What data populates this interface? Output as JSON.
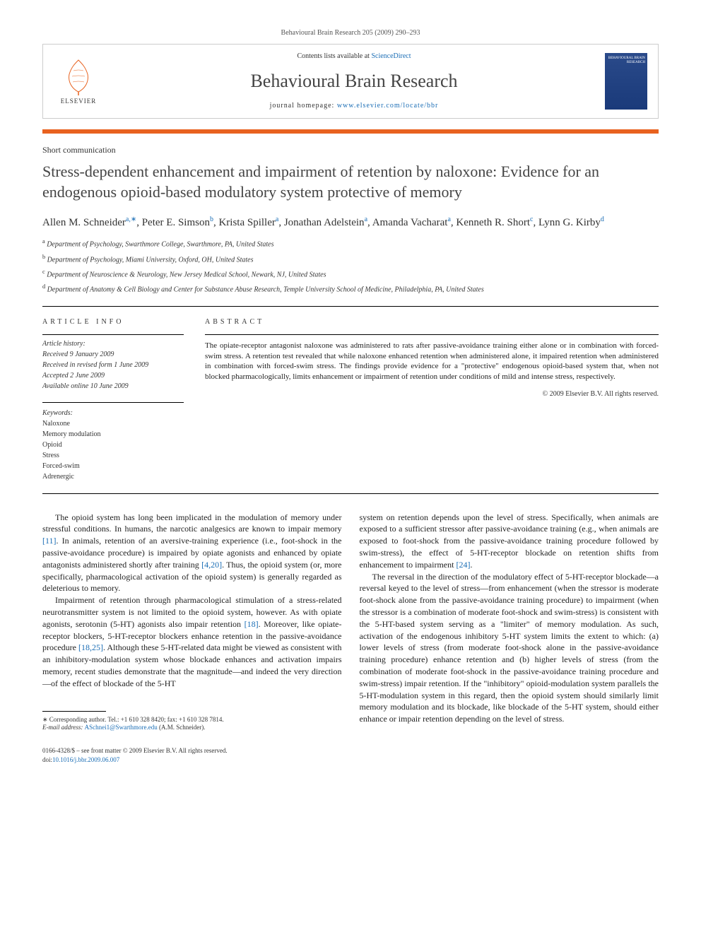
{
  "header": {
    "citation": "Behavioural Brain Research 205 (2009) 290–293"
  },
  "topbox": {
    "contents_prefix": "Contents lists available at ",
    "contents_link": "ScienceDirect",
    "journal_name": "Behavioural Brain Research",
    "homepage_prefix": "journal homepage: ",
    "homepage_url": "www.elsevier.com/locate/bbr",
    "elsevier_label": "ELSEVIER",
    "cover_text": "BEHAVIOURAL BRAIN RESEARCH"
  },
  "article": {
    "type": "Short communication",
    "title": "Stress-dependent enhancement and impairment of retention by naloxone: Evidence for an endogenous opioid-based modulatory system protective of memory",
    "authors_html": [
      {
        "name": "Allen M. Schneider",
        "sup": "a,∗"
      },
      {
        "name": "Peter E. Simson",
        "sup": "b"
      },
      {
        "name": "Krista Spiller",
        "sup": "a"
      },
      {
        "name": "Jonathan Adelstein",
        "sup": "a"
      },
      {
        "name": "Amanda Vacharat",
        "sup": "a"
      },
      {
        "name": "Kenneth R. Short",
        "sup": "c"
      },
      {
        "name": "Lynn G. Kirby",
        "sup": "d"
      }
    ],
    "affiliations": [
      {
        "sup": "a",
        "text": "Department of Psychology, Swarthmore College, Swarthmore, PA, United States"
      },
      {
        "sup": "b",
        "text": "Department of Psychology, Miami University, Oxford, OH, United States"
      },
      {
        "sup": "c",
        "text": "Department of Neuroscience & Neurology, New Jersey Medical School, Newark, NJ, United States"
      },
      {
        "sup": "d",
        "text": "Department of Anatomy & Cell Biology and Center for Substance Abuse Research, Temple University School of Medicine, Philadelphia, PA, United States"
      }
    ]
  },
  "info": {
    "heading": "ARTICLE INFO",
    "history_label": "Article history:",
    "history": [
      "Received 9 January 2009",
      "Received in revised form 1 June 2009",
      "Accepted 2 June 2009",
      "Available online 10 June 2009"
    ],
    "keywords_label": "Keywords:",
    "keywords": [
      "Naloxone",
      "Memory modulation",
      "Opioid",
      "Stress",
      "Forced-swim",
      "Adrenergic"
    ]
  },
  "abstract": {
    "heading": "ABSTRACT",
    "text": "The opiate-receptor antagonist naloxone was administered to rats after passive-avoidance training either alone or in combination with forced-swim stress. A retention test revealed that while naloxone enhanced retention when administered alone, it impaired retention when administered in combination with forced-swim stress. The findings provide evidence for a \"protective\" endogenous opioid-based system that, when not blocked pharmacologically, limits enhancement or impairment of retention under conditions of mild and intense stress, respectively.",
    "copyright": "© 2009 Elsevier B.V. All rights reserved."
  },
  "body": {
    "col1": {
      "p1_pre": "The opioid system has long been implicated in the modulation of memory under stressful conditions. In humans, the narcotic analgesics are known to impair memory ",
      "p1_ref1": "[11]",
      "p1_mid": ". In animals, retention of an aversive-training experience (i.e., foot-shock in the passive-avoidance procedure) is impaired by opiate agonists and enhanced by opiate antagonists administered shortly after training ",
      "p1_ref2": "[4,20]",
      "p1_post": ". Thus, the opioid system (or, more specifically, pharmacological activation of the opioid system) is generally regarded as deleterious to memory.",
      "p2_pre": "Impairment of retention through pharmacological stimulation of a stress-related neurotransmitter system is not limited to the opioid system, however. As with opiate agonists, serotonin (5-HT) agonists also impair retention ",
      "p2_ref1": "[18]",
      "p2_mid": ". Moreover, like opiate-receptor blockers, 5-HT-receptor blockers enhance retention in the passive-avoidance procedure ",
      "p2_ref2": "[18,25]",
      "p2_post": ". Although these 5-HT-related data might be viewed as consistent with an inhibitory-modulation system whose blockade enhances and activation impairs memory, recent studies demonstrate that the magnitude—and indeed the very direction—of the effect of blockade of the 5-HT"
    },
    "col2": {
      "p1_pre": "system on retention depends upon the level of stress. Specifically, when animals are exposed to a sufficient stressor after passive-avoidance training (e.g., when animals are exposed to foot-shock from the passive-avoidance training procedure followed by swim-stress), the effect of 5-HT-receptor blockade on retention shifts from enhancement to impairment ",
      "p1_ref1": "[24]",
      "p1_post": ".",
      "p2": "The reversal in the direction of the modulatory effect of 5-HT-receptor blockade—a reversal keyed to the level of stress—from enhancement (when the stressor is moderate foot-shock alone from the passive-avoidance training procedure) to impairment (when the stressor is a combination of moderate foot-shock and swim-stress) is consistent with the 5-HT-based system serving as a \"limiter\" of memory modulation. As such, activation of the endogenous inhibitory 5-HT system limits the extent to which: (a) lower levels of stress (from moderate foot-shock alone in the passive-avoidance training procedure) enhance retention and (b) higher levels of stress (from the combination of moderate foot-shock in the passive-avoidance training procedure and swim-stress) impair retention. If the \"inhibitory\" opioid-modulation system parallels the 5-HT-modulation system in this regard, then the opioid system should similarly limit memory modulation and its blockade, like blockade of the 5-HT system, should either enhance or impair retention depending on the level of stress."
    }
  },
  "footnote": {
    "corresponding": "∗ Corresponding author. Tel.: +1 610 328 8420; fax: +1 610 328 7814.",
    "email_label": "E-mail address: ",
    "email": "ASchnei1@Swarthmore.edu",
    "email_suffix": " (A.M. Schneider)."
  },
  "footer": {
    "line1": "0166-4328/$ – see front matter © 2009 Elsevier B.V. All rights reserved.",
    "doi_prefix": "doi:",
    "doi": "10.1016/j.bbr.2009.06.007"
  }
}
